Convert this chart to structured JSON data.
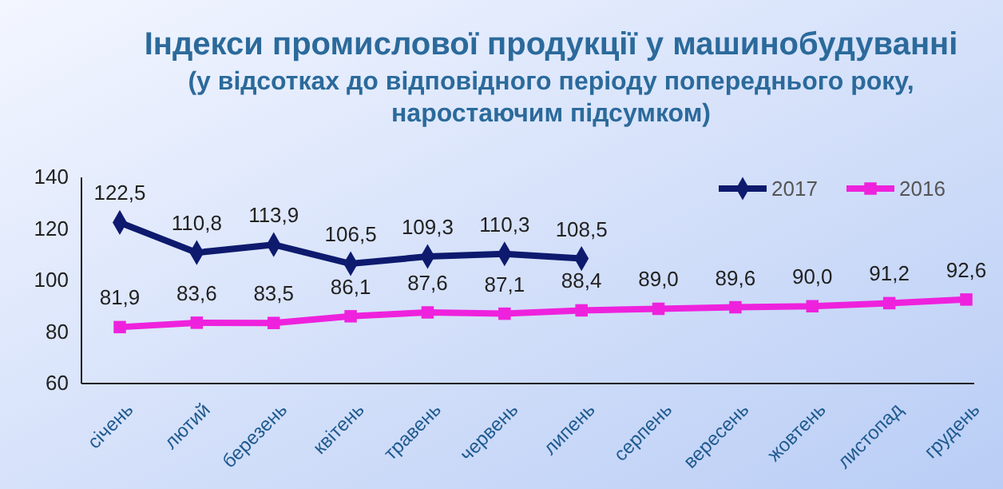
{
  "chart_data": {
    "type": "line",
    "title": "Індекси промислової продукції у машинобудуванні",
    "subtitle": "(у відсотках до відповідного періоду попереднього року, наростаючим підсумком)",
    "categories": [
      "січень",
      "лютий",
      "березень",
      "квітень",
      "травень",
      "червень",
      "липень",
      "серпень",
      "вересень",
      "жовтень",
      "листопад",
      "грудень"
    ],
    "series": [
      {
        "name": "2017",
        "color": "#0d1a6e",
        "marker": "diamond",
        "values": [
          122.5,
          110.8,
          113.9,
          106.5,
          109.3,
          110.3,
          108.5,
          null,
          null,
          null,
          null,
          null
        ],
        "value_labels": [
          "122,5",
          "110,8",
          "113,9",
          "106,5",
          "109,3",
          "110,3",
          "108,5",
          null,
          null,
          null,
          null,
          null
        ]
      },
      {
        "name": "2016",
        "color": "#ee22dd",
        "marker": "square",
        "values": [
          81.9,
          83.6,
          83.5,
          86.1,
          87.6,
          87.1,
          88.4,
          89.0,
          89.6,
          90.0,
          91.2,
          92.6
        ],
        "value_labels": [
          "81,9",
          "83,6",
          "83,5",
          "86,1",
          "87,6",
          "87,1",
          "88,4",
          "89,0",
          "89,6",
          "90,0",
          "91,2",
          "92,6"
        ]
      }
    ],
    "ylim": [
      60,
      140
    ],
    "yticks": [
      60,
      80,
      100,
      120,
      140
    ],
    "grid": false,
    "legend": "top right",
    "line_style": "solid"
  }
}
